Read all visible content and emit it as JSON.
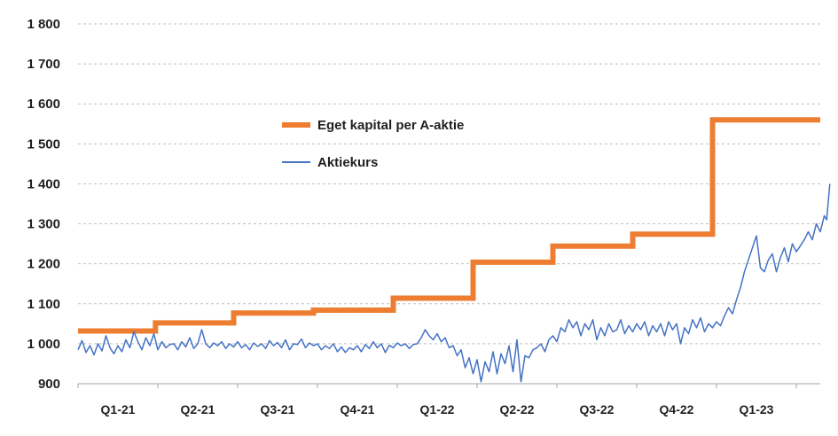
{
  "chart_data": {
    "type": "line",
    "y_axis": {
      "min": 900,
      "max": 1800,
      "ticks": [
        900,
        1000,
        1100,
        1200,
        1300,
        1400,
        1500,
        1600,
        1700,
        1800
      ],
      "tick_labels": [
        "900",
        "1 000",
        "1 100",
        "1 200",
        "1 300",
        "1 400",
        "1 500",
        "1 600",
        "1 700",
        "1 800"
      ]
    },
    "x_axis": {
      "min": 0,
      "max": 9.3,
      "categories": [
        "Q1-21",
        "Q2-21",
        "Q3-21",
        "Q4-21",
        "Q1-22",
        "Q2-22",
        "Q3-22",
        "Q4-22",
        "Q1-23"
      ]
    },
    "grid": "horizontal-dashed",
    "legend_position": "center-left",
    "series": [
      {
        "name": "Eget kapital per A-aktie",
        "color": "#ed7d31",
        "style": "step",
        "points": [
          [
            0,
            1032
          ],
          [
            0.97,
            1032
          ],
          [
            0.97,
            1052
          ],
          [
            1.95,
            1052
          ],
          [
            1.95,
            1077
          ],
          [
            2.95,
            1077
          ],
          [
            2.95,
            1084
          ],
          [
            3.95,
            1084
          ],
          [
            3.95,
            1114
          ],
          [
            4.95,
            1114
          ],
          [
            4.95,
            1204
          ],
          [
            5.95,
            1204
          ],
          [
            5.95,
            1244
          ],
          [
            6.95,
            1244
          ],
          [
            6.95,
            1274
          ],
          [
            7.95,
            1274
          ],
          [
            7.95,
            1560
          ],
          [
            9.3,
            1560
          ]
        ]
      },
      {
        "name": "Aktiekurs",
        "color": "#4472c4",
        "style": "line",
        "points": [
          [
            0.0,
            985
          ],
          [
            0.05,
            1008
          ],
          [
            0.1,
            978
          ],
          [
            0.15,
            995
          ],
          [
            0.2,
            972
          ],
          [
            0.25,
            1000
          ],
          [
            0.3,
            982
          ],
          [
            0.35,
            1020
          ],
          [
            0.4,
            990
          ],
          [
            0.45,
            975
          ],
          [
            0.5,
            995
          ],
          [
            0.55,
            980
          ],
          [
            0.6,
            1010
          ],
          [
            0.65,
            990
          ],
          [
            0.7,
            1030
          ],
          [
            0.75,
            1005
          ],
          [
            0.8,
            985
          ],
          [
            0.85,
            1015
          ],
          [
            0.9,
            995
          ],
          [
            0.95,
            1025
          ],
          [
            1.0,
            985
          ],
          [
            1.05,
            1005
          ],
          [
            1.1,
            990
          ],
          [
            1.15,
            998
          ],
          [
            1.2,
            1000
          ],
          [
            1.25,
            985
          ],
          [
            1.3,
            1005
          ],
          [
            1.35,
            992
          ],
          [
            1.4,
            1015
          ],
          [
            1.45,
            988
          ],
          [
            1.5,
            1000
          ],
          [
            1.55,
            1035
          ],
          [
            1.6,
            1000
          ],
          [
            1.65,
            990
          ],
          [
            1.7,
            1002
          ],
          [
            1.75,
            995
          ],
          [
            1.8,
            1005
          ],
          [
            1.85,
            988
          ],
          [
            1.9,
            1000
          ],
          [
            1.95,
            992
          ],
          [
            2.0,
            1005
          ],
          [
            2.05,
            990
          ],
          [
            2.1,
            998
          ],
          [
            2.15,
            985
          ],
          [
            2.2,
            1002
          ],
          [
            2.25,
            993
          ],
          [
            2.3,
            1000
          ],
          [
            2.35,
            988
          ],
          [
            2.4,
            1008
          ],
          [
            2.45,
            995
          ],
          [
            2.5,
            1003
          ],
          [
            2.55,
            990
          ],
          [
            2.6,
            1010
          ],
          [
            2.65,
            985
          ],
          [
            2.7,
            1000
          ],
          [
            2.75,
            998
          ],
          [
            2.8,
            1012
          ],
          [
            2.85,
            990
          ],
          [
            2.9,
            1002
          ],
          [
            2.95,
            995
          ],
          [
            3.0,
            1000
          ],
          [
            3.05,
            985
          ],
          [
            3.1,
            995
          ],
          [
            3.15,
            988
          ],
          [
            3.2,
            1000
          ],
          [
            3.25,
            980
          ],
          [
            3.3,
            992
          ],
          [
            3.35,
            978
          ],
          [
            3.4,
            990
          ],
          [
            3.45,
            985
          ],
          [
            3.5,
            995
          ],
          [
            3.55,
            980
          ],
          [
            3.6,
            998
          ],
          [
            3.65,
            988
          ],
          [
            3.7,
            1005
          ],
          [
            3.75,
            990
          ],
          [
            3.8,
            1000
          ],
          [
            3.85,
            978
          ],
          [
            3.9,
            996
          ],
          [
            3.95,
            990
          ],
          [
            4.0,
            1002
          ],
          [
            4.05,
            995
          ],
          [
            4.1,
            1000
          ],
          [
            4.15,
            988
          ],
          [
            4.2,
            998
          ],
          [
            4.25,
            1000
          ],
          [
            4.3,
            1015
          ],
          [
            4.35,
            1035
          ],
          [
            4.4,
            1020
          ],
          [
            4.45,
            1010
          ],
          [
            4.5,
            1025
          ],
          [
            4.55,
            1005
          ],
          [
            4.6,
            1015
          ],
          [
            4.65,
            990
          ],
          [
            4.7,
            995
          ],
          [
            4.75,
            970
          ],
          [
            4.8,
            985
          ],
          [
            4.85,
            940
          ],
          [
            4.9,
            965
          ],
          [
            4.95,
            925
          ],
          [
            5.0,
            960
          ],
          [
            5.05,
            905
          ],
          [
            5.1,
            955
          ],
          [
            5.15,
            930
          ],
          [
            5.2,
            980
          ],
          [
            5.25,
            925
          ],
          [
            5.3,
            975
          ],
          [
            5.35,
            950
          ],
          [
            5.4,
            995
          ],
          [
            5.45,
            930
          ],
          [
            5.5,
            1010
          ],
          [
            5.55,
            905
          ],
          [
            5.6,
            970
          ],
          [
            5.65,
            965
          ],
          [
            5.7,
            985
          ],
          [
            5.75,
            990
          ],
          [
            5.8,
            1000
          ],
          [
            5.85,
            980
          ],
          [
            5.9,
            1010
          ],
          [
            5.95,
            1020
          ],
          [
            6.0,
            1005
          ],
          [
            6.05,
            1040
          ],
          [
            6.1,
            1030
          ],
          [
            6.15,
            1060
          ],
          [
            6.2,
            1040
          ],
          [
            6.25,
            1055
          ],
          [
            6.3,
            1020
          ],
          [
            6.35,
            1050
          ],
          [
            6.4,
            1035
          ],
          [
            6.45,
            1060
          ],
          [
            6.5,
            1010
          ],
          [
            6.55,
            1040
          ],
          [
            6.6,
            1020
          ],
          [
            6.65,
            1050
          ],
          [
            6.7,
            1030
          ],
          [
            6.75,
            1035
          ],
          [
            6.8,
            1060
          ],
          [
            6.85,
            1025
          ],
          [
            6.9,
            1045
          ],
          [
            6.95,
            1030
          ],
          [
            7.0,
            1050
          ],
          [
            7.05,
            1035
          ],
          [
            7.1,
            1055
          ],
          [
            7.15,
            1020
          ],
          [
            7.2,
            1045
          ],
          [
            7.25,
            1030
          ],
          [
            7.3,
            1050
          ],
          [
            7.35,
            1020
          ],
          [
            7.4,
            1055
          ],
          [
            7.45,
            1035
          ],
          [
            7.5,
            1050
          ],
          [
            7.55,
            1000
          ],
          [
            7.6,
            1040
          ],
          [
            7.65,
            1025
          ],
          [
            7.7,
            1060
          ],
          [
            7.75,
            1040
          ],
          [
            7.8,
            1065
          ],
          [
            7.85,
            1030
          ],
          [
            7.9,
            1050
          ],
          [
            7.95,
            1040
          ],
          [
            8.0,
            1055
          ],
          [
            8.05,
            1045
          ],
          [
            8.1,
            1070
          ],
          [
            8.15,
            1090
          ],
          [
            8.2,
            1075
          ],
          [
            8.25,
            1110
          ],
          [
            8.3,
            1140
          ],
          [
            8.35,
            1180
          ],
          [
            8.4,
            1210
          ],
          [
            8.45,
            1240
          ],
          [
            8.5,
            1270
          ],
          [
            8.55,
            1190
          ],
          [
            8.6,
            1180
          ],
          [
            8.65,
            1210
          ],
          [
            8.7,
            1225
          ],
          [
            8.75,
            1180
          ],
          [
            8.8,
            1215
          ],
          [
            8.85,
            1240
          ],
          [
            8.9,
            1205
          ],
          [
            8.95,
            1250
          ],
          [
            9.0,
            1230
          ],
          [
            9.05,
            1245
          ],
          [
            9.1,
            1260
          ],
          [
            9.15,
            1280
          ],
          [
            9.2,
            1260
          ],
          [
            9.25,
            1300
          ],
          [
            9.3,
            1280
          ],
          [
            9.35,
            1320
          ],
          [
            9.38,
            1310
          ],
          [
            9.42,
            1400
          ]
        ]
      }
    ]
  }
}
